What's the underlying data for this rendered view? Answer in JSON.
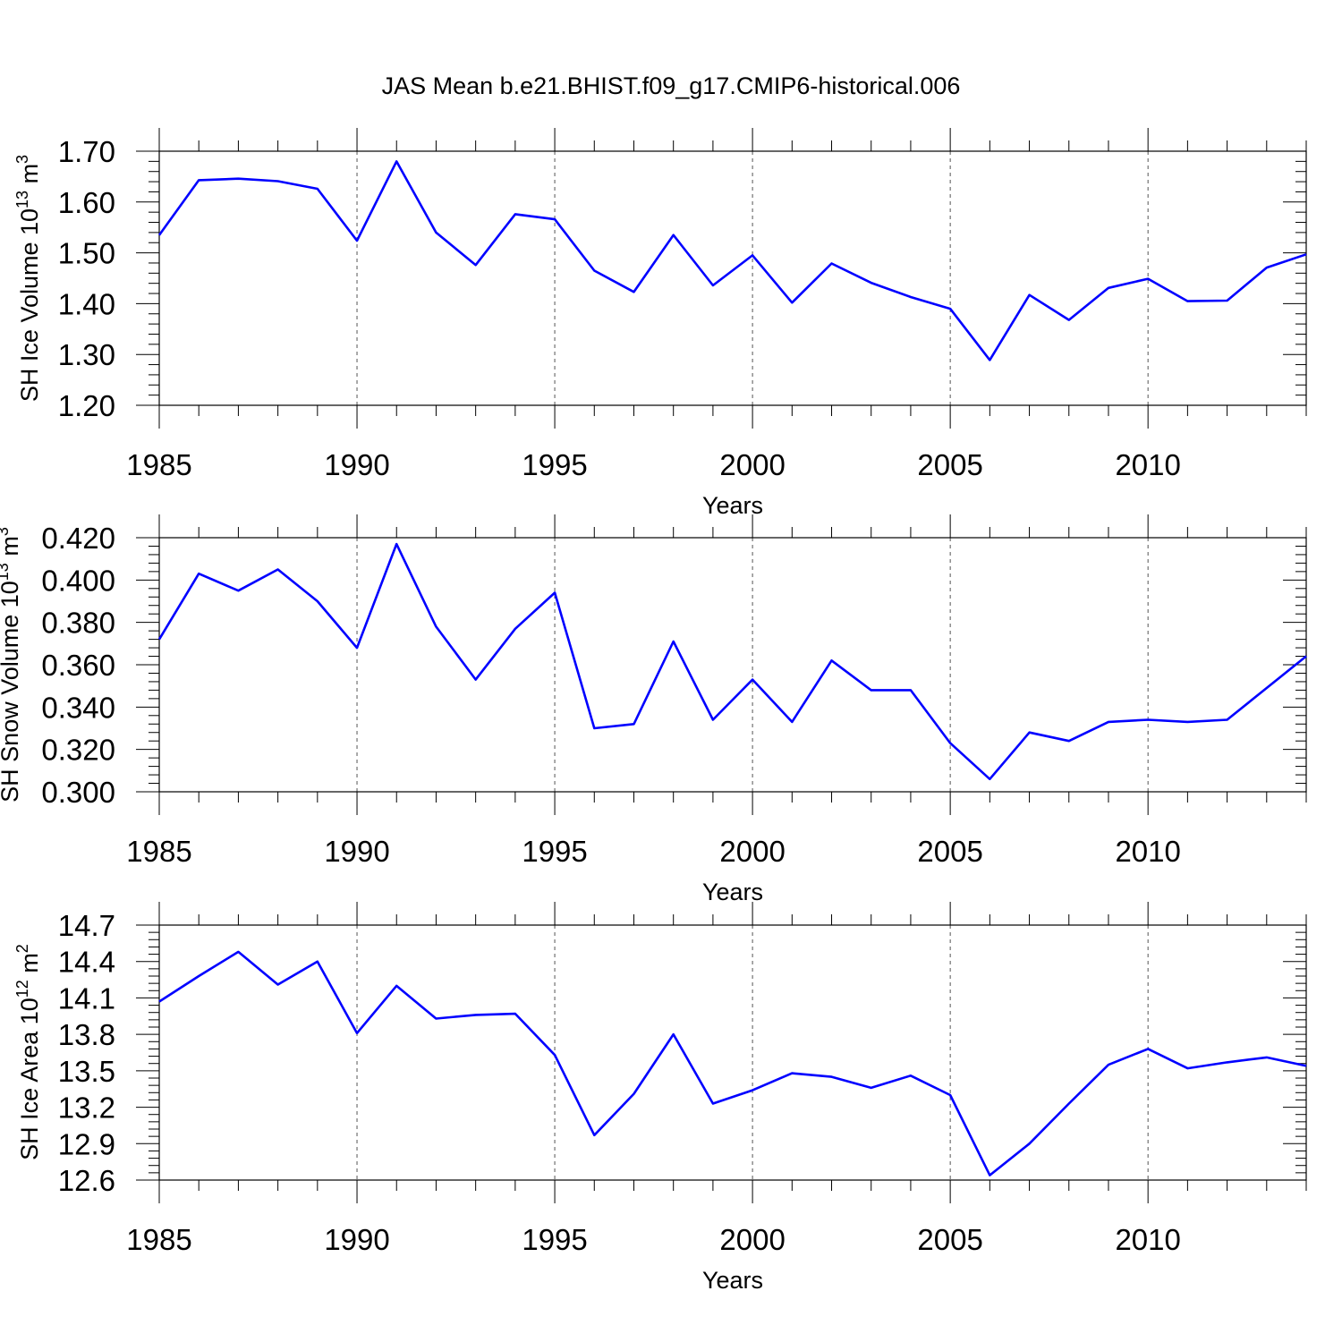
{
  "title": "JAS Mean b.e21.BHIST.f09_g17.CMIP6-historical.006",
  "colors": {
    "line": "#0000ff",
    "axis": "#000000",
    "grid": "#555555"
  },
  "chart_data": [
    {
      "type": "line",
      "ylabel": "SH Ice Volume 10",
      "ylabel_exp": "13",
      "ylabel_unit": " m",
      "ylabel_unit_exp": "3",
      "xlabel": "Years",
      "xlim": [
        1985,
        2014
      ],
      "xticks": [
        1985,
        1990,
        1995,
        2000,
        2005,
        2010
      ],
      "ylim": [
        1.2,
        1.7
      ],
      "yticks": [
        "1.20",
        "1.30",
        "1.40",
        "1.50",
        "1.60",
        "1.70"
      ],
      "x": [
        1985,
        1986,
        1987,
        1988,
        1989,
        1990,
        1991,
        1992,
        1993,
        1994,
        1995,
        1996,
        1997,
        1998,
        1999,
        2000,
        2001,
        2002,
        2003,
        2004,
        2005,
        2006,
        2007,
        2008,
        2009,
        2010,
        2011,
        2012,
        2013,
        2014
      ],
      "values": [
        1.535,
        1.643,
        1.646,
        1.641,
        1.626,
        1.524,
        1.68,
        1.54,
        1.476,
        1.576,
        1.566,
        1.465,
        1.423,
        1.535,
        1.436,
        1.495,
        1.402,
        1.479,
        1.441,
        1.413,
        1.39,
        1.289,
        1.417,
        1.368,
        1.431,
        1.449,
        1.405,
        1.406,
        1.471,
        1.497
      ]
    },
    {
      "type": "line",
      "ylabel": "SH Snow Volume 10",
      "ylabel_exp": "13",
      "ylabel_unit": " m",
      "ylabel_unit_exp": "3",
      "xlabel": "Years",
      "xlim": [
        1985,
        2014
      ],
      "xticks": [
        1985,
        1990,
        1995,
        2000,
        2005,
        2010
      ],
      "ylim": [
        0.3,
        0.42
      ],
      "yticks": [
        "0.300",
        "0.320",
        "0.340",
        "0.360",
        "0.380",
        "0.400",
        "0.420"
      ],
      "x": [
        1985,
        1986,
        1987,
        1988,
        1989,
        1990,
        1991,
        1992,
        1993,
        1994,
        1995,
        1996,
        1997,
        1998,
        1999,
        2000,
        2001,
        2002,
        2003,
        2004,
        2005,
        2006,
        2007,
        2008,
        2009,
        2010,
        2011,
        2012,
        2013,
        2014
      ],
      "values": [
        0.372,
        0.403,
        0.395,
        0.405,
        0.39,
        0.368,
        0.417,
        0.378,
        0.353,
        0.377,
        0.394,
        0.33,
        0.332,
        0.371,
        0.334,
        0.353,
        0.333,
        0.362,
        0.348,
        0.348,
        0.323,
        0.306,
        0.328,
        0.324,
        0.333,
        0.334,
        0.333,
        0.334,
        0.349,
        0.364
      ]
    },
    {
      "type": "line",
      "ylabel": "SH Ice Area 10",
      "ylabel_exp": "12",
      "ylabel_unit": " m",
      "ylabel_unit_exp": "2",
      "xlabel": "Years",
      "xlim": [
        1985,
        2014
      ],
      "xticks": [
        1985,
        1990,
        1995,
        2000,
        2005,
        2010
      ],
      "ylim": [
        12.6,
        14.7
      ],
      "yticks": [
        "12.6",
        "12.9",
        "13.2",
        "13.5",
        "13.8",
        "14.1",
        "14.4",
        "14.7"
      ],
      "x": [
        1985,
        1986,
        1987,
        1988,
        1989,
        1990,
        1991,
        1992,
        1993,
        1994,
        1995,
        1996,
        1997,
        1998,
        1999,
        2000,
        2001,
        2002,
        2003,
        2004,
        2005,
        2006,
        2007,
        2008,
        2009,
        2010,
        2011,
        2012,
        2013,
        2014
      ],
      "values": [
        14.07,
        14.28,
        14.48,
        14.21,
        14.4,
        13.81,
        14.2,
        13.93,
        13.96,
        13.97,
        13.63,
        12.97,
        13.31,
        13.8,
        13.23,
        13.34,
        13.48,
        13.45,
        13.36,
        13.46,
        13.3,
        12.64,
        12.9,
        13.23,
        13.55,
        13.68,
        13.52,
        13.57,
        13.61,
        13.54
      ]
    }
  ]
}
